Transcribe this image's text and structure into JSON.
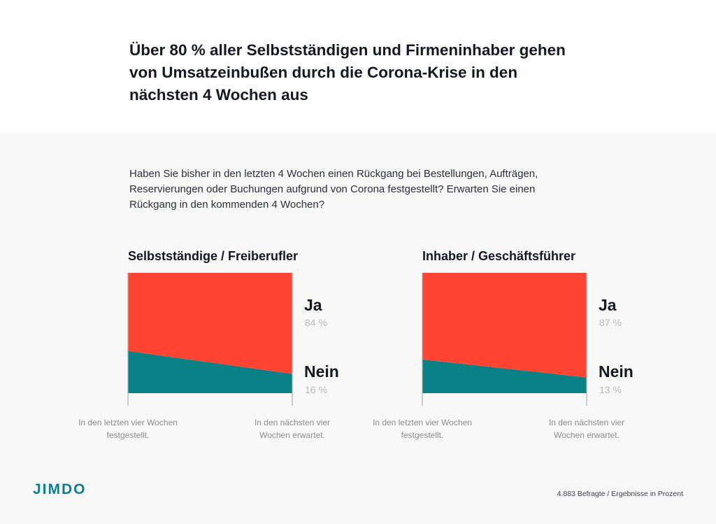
{
  "title": "Über 80 % aller Selbstständigen und Firmeninhaber gehen von Umsatzeinbußen durch die Corona-Krise in den nächsten 4 Wochen aus",
  "question": "Haben Sie bisher in den letzten 4 Wochen einen Rückgang bei Bestellungen, Aufträgen, Reservierungen oder Buchungen aufgrund von Corona festgestellt? Erwarten Sie einen Rückgang in den kommenden 4 Wochen?",
  "colors": {
    "ja": "#ff4433",
    "nein": "#0a8185",
    "axis": "#b0b0b0"
  },
  "chart_data": [
    {
      "type": "area",
      "title": "Selbstständige / Freiberufler",
      "categories": [
        "In den letzten vier Wochen festgestellt.",
        "In den nächsten vier Wochen erwartet."
      ],
      "series": [
        {
          "name": "Ja",
          "values": [
            65,
            84
          ],
          "label": "84 %"
        },
        {
          "name": "Nein",
          "values": [
            35,
            16
          ],
          "label": "16 %"
        }
      ],
      "ylim": [
        0,
        100
      ]
    },
    {
      "type": "area",
      "title": "Inhaber / Geschäftsführer",
      "categories": [
        "In den letzten vier Wochen festgestellt.",
        "In den nächsten vier Wochen erwartet."
      ],
      "series": [
        {
          "name": "Ja",
          "values": [
            72,
            87
          ],
          "label": "87 %"
        },
        {
          "name": "Nein",
          "values": [
            28,
            13
          ],
          "label": "13 %"
        }
      ],
      "ylim": [
        0,
        100
      ]
    }
  ],
  "brand": "JIMDO",
  "footnote": "4.883 Befragte / Ergebnisse in Prozent"
}
